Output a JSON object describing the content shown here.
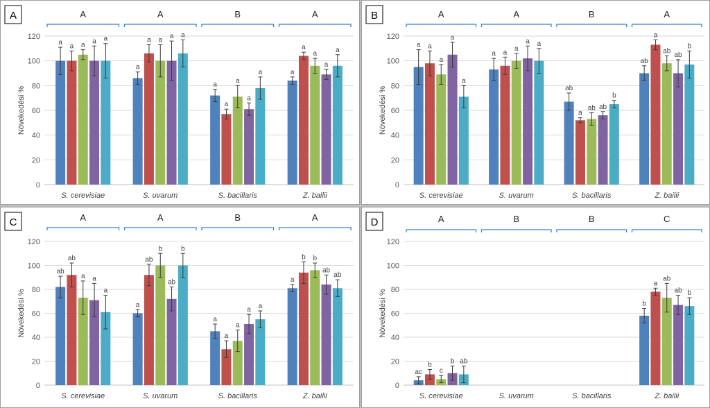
{
  "colors": [
    "#4f81bd",
    "#c0504d",
    "#9bbb59",
    "#8064a2",
    "#4bacc6"
  ],
  "chart_data": [
    {
      "panel": "A",
      "type": "bar",
      "ylabel": "Növekedési %",
      "ylim": [
        0,
        120
      ],
      "yticks": [
        "0",
        "20",
        "40",
        "60",
        "80",
        "100",
        "120"
      ],
      "categories": [
        "S. cerevisiae",
        "S. uvarum",
        "S. bacillaris",
        "Z. bailii"
      ],
      "group_letters": [
        "A",
        "A",
        "B",
        "A"
      ],
      "values": [
        [
          100,
          100,
          105,
          100,
          100
        ],
        [
          86,
          106,
          100,
          100,
          106
        ],
        [
          72,
          57,
          71,
          61,
          78
        ],
        [
          84,
          104,
          96,
          89,
          96
        ]
      ],
      "errors": [
        [
          11,
          8,
          4,
          12,
          14
        ],
        [
          5,
          7,
          13,
          16,
          11
        ],
        [
          5,
          4,
          9,
          5,
          9
        ],
        [
          3,
          3,
          6,
          4,
          9
        ]
      ],
      "labels": [
        [
          "a",
          "a",
          "a",
          "a",
          "a"
        ],
        [
          "a",
          "a",
          "a",
          "a",
          "a"
        ],
        [
          "a",
          "a",
          "a",
          "a",
          "a"
        ],
        [
          "a",
          "a",
          "a",
          "a",
          "a"
        ]
      ]
    },
    {
      "panel": "B",
      "type": "bar",
      "ylabel": "Növekedési %",
      "ylim": [
        0,
        120
      ],
      "yticks": [
        "0",
        "20",
        "40",
        "60",
        "80",
        "100",
        "120"
      ],
      "categories": [
        "S. cerevisiae",
        "S. uvarum",
        "S. bacillaris",
        "Z. bailii"
      ],
      "group_letters": [
        "A",
        "A",
        "B",
        "A"
      ],
      "values": [
        [
          95,
          98,
          89,
          105,
          71
        ],
        [
          93,
          96,
          100,
          102,
          100
        ],
        [
          67,
          52,
          53,
          56,
          65
        ],
        [
          90,
          113,
          98,
          90,
          97
        ]
      ],
      "errors": [
        [
          14,
          10,
          8,
          10,
          9
        ],
        [
          9,
          7,
          6,
          10,
          10
        ],
        [
          7,
          2,
          5,
          3,
          3
        ],
        [
          6,
          4,
          6,
          11,
          11
        ]
      ],
      "labels": [
        [
          "a",
          "a",
          "a",
          "a",
          "a"
        ],
        [
          "a",
          "a",
          "a",
          "a",
          "a"
        ],
        [
          "ab",
          "a",
          "ab",
          "ab",
          "b"
        ],
        [
          "ab",
          "a",
          "ab",
          "ab",
          "b"
        ]
      ]
    },
    {
      "panel": "C",
      "type": "bar",
      "ylabel": "Növekedési %",
      "ylim": [
        0,
        120
      ],
      "yticks": [
        "0",
        "20",
        "40",
        "60",
        "80",
        "100",
        "120"
      ],
      "categories": [
        "S. cerevisiae",
        "S. uvarum",
        "S. bacillaris",
        "Z. bailii"
      ],
      "group_letters": [
        "A",
        "A",
        "B",
        "A"
      ],
      "values": [
        [
          82,
          92,
          73,
          71,
          61
        ],
        [
          60,
          92,
          100,
          72,
          100
        ],
        [
          45,
          30,
          37,
          51,
          55
        ],
        [
          81,
          94,
          96,
          84,
          81
        ]
      ],
      "errors": [
        [
          9,
          10,
          14,
          14,
          14
        ],
        [
          3,
          9,
          10,
          10,
          10
        ],
        [
          6,
          7,
          9,
          8,
          7
        ],
        [
          3,
          9,
          6,
          8,
          7
        ]
      ],
      "labels": [
        [
          "ab",
          "ab",
          "a",
          "a",
          "a"
        ],
        [
          "a",
          "ab",
          "b",
          "ab",
          "b"
        ],
        [
          "a",
          "a",
          "a",
          "a",
          "a"
        ],
        [
          "a",
          "b",
          "b",
          "ab",
          "ab"
        ]
      ]
    },
    {
      "panel": "D",
      "type": "bar",
      "ylabel": "Növekedési %",
      "ylim": [
        0,
        120
      ],
      "yticks": [
        "0",
        "20",
        "40",
        "60",
        "80",
        "100",
        "120"
      ],
      "categories": [
        "S. cerevisiae",
        "S. uvarum",
        "S. bacillaris",
        "Z. bailii"
      ],
      "group_letters": [
        "A",
        "B",
        "B",
        "C"
      ],
      "values": [
        [
          4,
          9,
          5,
          10,
          9
        ],
        [
          0,
          0,
          0,
          0,
          0
        ],
        [
          0,
          0,
          0,
          0,
          0
        ],
        [
          58,
          78,
          73,
          67,
          66
        ]
      ],
      "errors": [
        [
          3,
          4,
          3,
          6,
          7
        ],
        [
          0,
          0,
          0,
          0,
          0
        ],
        [
          0,
          0,
          0,
          0,
          0
        ],
        [
          6,
          3,
          12,
          8,
          7
        ]
      ],
      "labels": [
        [
          "ac",
          "b",
          "c",
          "b",
          "ab"
        ],
        [
          "",
          "",
          "",
          "",
          ""
        ],
        [
          "",
          "",
          "",
          "",
          ""
        ],
        [
          "b",
          "a",
          "ab",
          "ab",
          "b"
        ]
      ]
    }
  ]
}
